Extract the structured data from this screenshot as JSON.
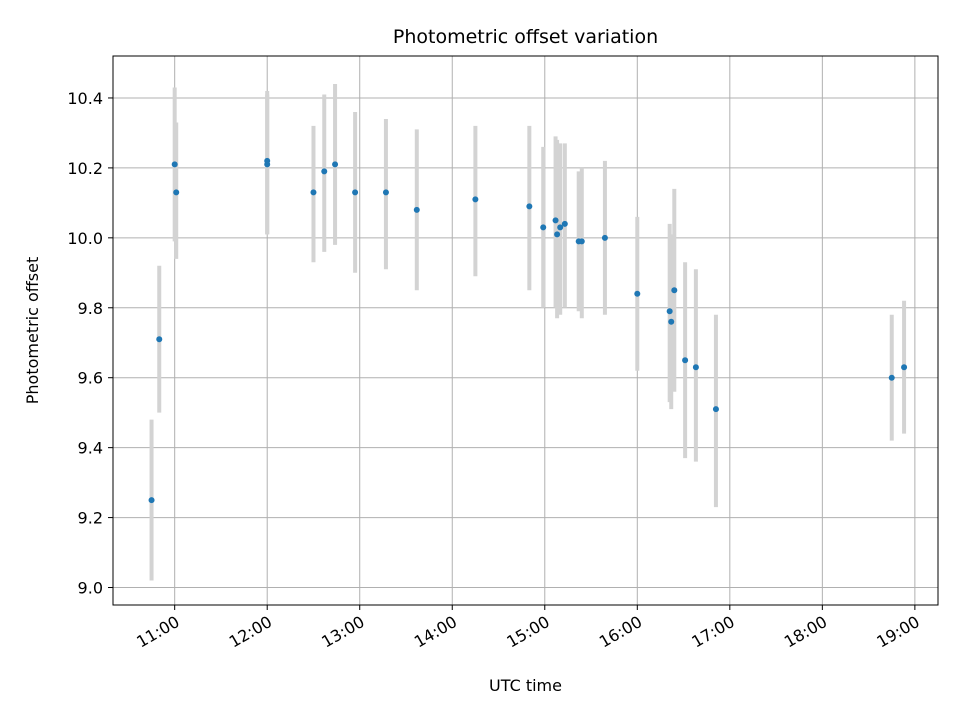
{
  "chart_data": {
    "type": "scatter",
    "title": "Photometric offset variation",
    "xlabel": "UTC time",
    "ylabel": "Photometric offset",
    "x_unit": "UTC hour of day",
    "xlim": [
      "10:20",
      "19:15"
    ],
    "ylim": [
      8.95,
      10.52
    ],
    "x_ticks": [
      "11:00",
      "12:00",
      "13:00",
      "14:00",
      "15:00",
      "16:00",
      "17:00",
      "18:00",
      "19:00"
    ],
    "y_ticks": [
      "9.0",
      "9.2",
      "9.4",
      "9.6",
      "9.8",
      "10.0",
      "10.2",
      "10.4"
    ],
    "grid": true,
    "points": [
      {
        "x": "10:45",
        "y": 9.25,
        "yerr_low": 9.02,
        "yerr_high": 9.48
      },
      {
        "x": "10:50",
        "y": 9.71,
        "yerr_low": 9.5,
        "yerr_high": 9.92
      },
      {
        "x": "11:00",
        "y": 10.21,
        "yerr_low": 9.99,
        "yerr_high": 10.43
      },
      {
        "x": "11:01",
        "y": 10.13,
        "yerr_low": 9.94,
        "yerr_high": 10.33
      },
      {
        "x": "12:00",
        "y": 10.22,
        "yerr_low": 10.01,
        "yerr_high": 10.42
      },
      {
        "x": "12:00",
        "y": 10.21,
        "yerr_low": 10.01,
        "yerr_high": 10.41
      },
      {
        "x": "12:30",
        "y": 10.13,
        "yerr_low": 9.93,
        "yerr_high": 10.32
      },
      {
        "x": "12:37",
        "y": 10.19,
        "yerr_low": 9.96,
        "yerr_high": 10.41
      },
      {
        "x": "12:44",
        "y": 10.21,
        "yerr_low": 9.98,
        "yerr_high": 10.44
      },
      {
        "x": "12:57",
        "y": 10.13,
        "yerr_low": 9.9,
        "yerr_high": 10.36
      },
      {
        "x": "13:17",
        "y": 10.13,
        "yerr_low": 9.91,
        "yerr_high": 10.34
      },
      {
        "x": "13:37",
        "y": 10.08,
        "yerr_low": 9.85,
        "yerr_high": 10.31
      },
      {
        "x": "14:15",
        "y": 10.11,
        "yerr_low": 9.89,
        "yerr_high": 10.32
      },
      {
        "x": "14:50",
        "y": 10.09,
        "yerr_low": 9.85,
        "yerr_high": 10.32
      },
      {
        "x": "14:59",
        "y": 10.03,
        "yerr_low": 9.8,
        "yerr_high": 10.26
      },
      {
        "x": "15:07",
        "y": 10.05,
        "yerr_low": 9.8,
        "yerr_high": 10.29
      },
      {
        "x": "15:08",
        "y": 10.01,
        "yerr_low": 9.77,
        "yerr_high": 10.28
      },
      {
        "x": "15:10",
        "y": 10.03,
        "yerr_low": 9.78,
        "yerr_high": 10.27
      },
      {
        "x": "15:13",
        "y": 10.04,
        "yerr_low": 9.8,
        "yerr_high": 10.27
      },
      {
        "x": "15:22",
        "y": 9.99,
        "yerr_low": 9.79,
        "yerr_high": 10.19
      },
      {
        "x": "15:24",
        "y": 9.99,
        "yerr_low": 9.77,
        "yerr_high": 10.2
      },
      {
        "x": "15:39",
        "y": 10.0,
        "yerr_low": 9.78,
        "yerr_high": 10.22
      },
      {
        "x": "16:00",
        "y": 9.84,
        "yerr_low": 9.62,
        "yerr_high": 10.06
      },
      {
        "x": "16:21",
        "y": 9.79,
        "yerr_low": 9.53,
        "yerr_high": 10.04
      },
      {
        "x": "16:22",
        "y": 9.76,
        "yerr_low": 9.51,
        "yerr_high": 10.01
      },
      {
        "x": "16:24",
        "y": 9.85,
        "yerr_low": 9.56,
        "yerr_high": 10.14
      },
      {
        "x": "16:31",
        "y": 9.65,
        "yerr_low": 9.37,
        "yerr_high": 9.93
      },
      {
        "x": "16:38",
        "y": 9.63,
        "yerr_low": 9.36,
        "yerr_high": 9.91
      },
      {
        "x": "16:51",
        "y": 9.51,
        "yerr_low": 9.23,
        "yerr_high": 9.78
      },
      {
        "x": "18:45",
        "y": 9.6,
        "yerr_low": 9.42,
        "yerr_high": 9.78
      },
      {
        "x": "18:53",
        "y": 9.63,
        "yerr_low": 9.44,
        "yerr_high": 9.82
      }
    ],
    "colors": {
      "point": "#1f77b4",
      "errorbar": "#d3d3d3",
      "grid": "#b0b0b0",
      "axis": "#000000"
    }
  }
}
